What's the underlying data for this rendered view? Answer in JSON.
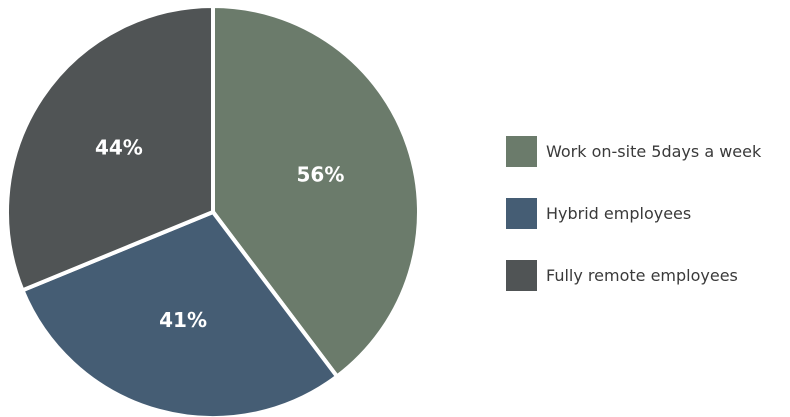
{
  "chart_data": {
    "type": "pie",
    "title": "",
    "slices": [
      {
        "label": "Work on-site 5days a week",
        "value_label": "56%",
        "value": 56,
        "color": "#6b7b6b"
      },
      {
        "label": "Hybrid employees",
        "value_label": "41%",
        "value": 41,
        "color": "#455d74"
      },
      {
        "label": "Fully remote employees",
        "value_label": "44%",
        "value": 44,
        "color": "#505455"
      }
    ],
    "legend_position": "right"
  }
}
